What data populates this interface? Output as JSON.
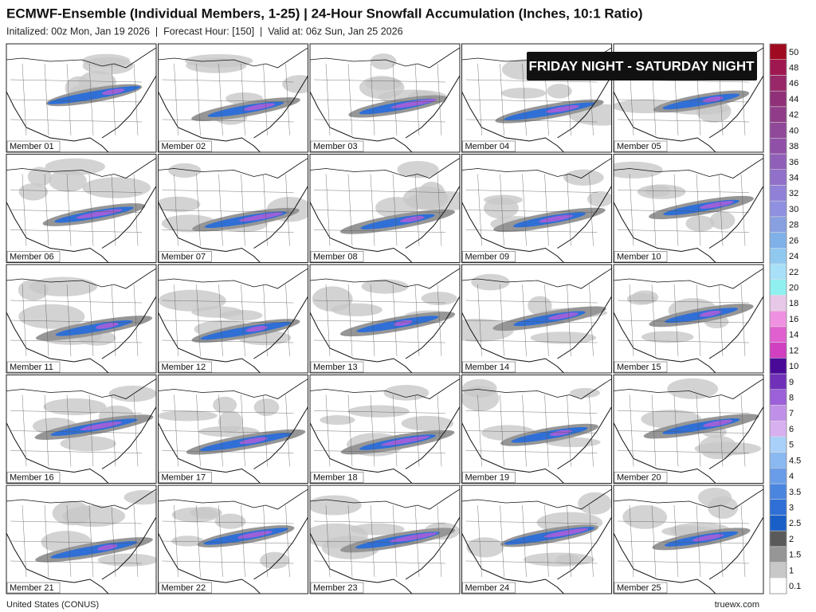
{
  "header": {
    "title": "ECMWF-Ensemble (Individual Members, 1-25) | 24-Hour Snowfall Accumulation (Inches, 10:1 Ratio)",
    "subtitle": "Initalized: 00z Mon, Jan 19 2026  |  Forecast Hour: [150]  |  Valid at: 06z Sun, Jan 25 2026"
  },
  "banner": "FRIDAY NIGHT - SATURDAY NIGHT",
  "panels": [
    "Member 01",
    "Member 02",
    "Member 03",
    "Member 04",
    "Member 05",
    "Member 06",
    "Member 07",
    "Member 08",
    "Member 09",
    "Member 10",
    "Member 11",
    "Member 12",
    "Member 13",
    "Member 14",
    "Member 15",
    "Member 16",
    "Member 17",
    "Member 18",
    "Member 19",
    "Member 20",
    "Member 21",
    "Member 22",
    "Member 23",
    "Member 24",
    "Member 25"
  ],
  "legend": [
    {
      "label": "0.1",
      "color": "#ffffff"
    },
    {
      "label": "1",
      "color": "#c8c8c8"
    },
    {
      "label": "1.5",
      "color": "#969696"
    },
    {
      "label": "2",
      "color": "#5a5a5a"
    },
    {
      "label": "2.5",
      "color": "#1a5fc8"
    },
    {
      "label": "3",
      "color": "#2f6fd6"
    },
    {
      "label": "3.5",
      "color": "#4a85e0"
    },
    {
      "label": "4",
      "color": "#6a9de8"
    },
    {
      "label": "4.5",
      "color": "#8ab8f0"
    },
    {
      "label": "5",
      "color": "#a8d0f8"
    },
    {
      "label": "6",
      "color": "#d8b0f0"
    },
    {
      "label": "7",
      "color": "#c090e8"
    },
    {
      "label": "8",
      "color": "#9c60d8"
    },
    {
      "label": "9",
      "color": "#7030b8"
    },
    {
      "label": "10",
      "color": "#4a0a98"
    },
    {
      "label": "12",
      "color": "#d040c0"
    },
    {
      "label": "14",
      "color": "#e060d0"
    },
    {
      "label": "16",
      "color": "#f090e0"
    },
    {
      "label": "18",
      "color": "#e8c8e8"
    },
    {
      "label": "20",
      "color": "#90f0f0"
    },
    {
      "label": "22",
      "color": "#a8e0f8"
    },
    {
      "label": "24",
      "color": "#90c8f0"
    },
    {
      "label": "26",
      "color": "#80b0e8"
    },
    {
      "label": "28",
      "color": "#88a0e0"
    },
    {
      "label": "30",
      "color": "#9090e0"
    },
    {
      "label": "32",
      "color": "#9080d8"
    },
    {
      "label": "34",
      "color": "#9070c8"
    },
    {
      "label": "36",
      "color": "#9060b8"
    },
    {
      "label": "38",
      "color": "#9050a8"
    },
    {
      "label": "40",
      "color": "#904898"
    },
    {
      "label": "42",
      "color": "#903c88"
    },
    {
      "label": "44",
      "color": "#903078"
    },
    {
      "label": "46",
      "color": "#982868"
    },
    {
      "label": "48",
      "color": "#a01850"
    },
    {
      "label": "50",
      "color": "#a00a20"
    }
  ],
  "footer": {
    "region": "United States (CONUS)",
    "source": "truewx.com"
  }
}
